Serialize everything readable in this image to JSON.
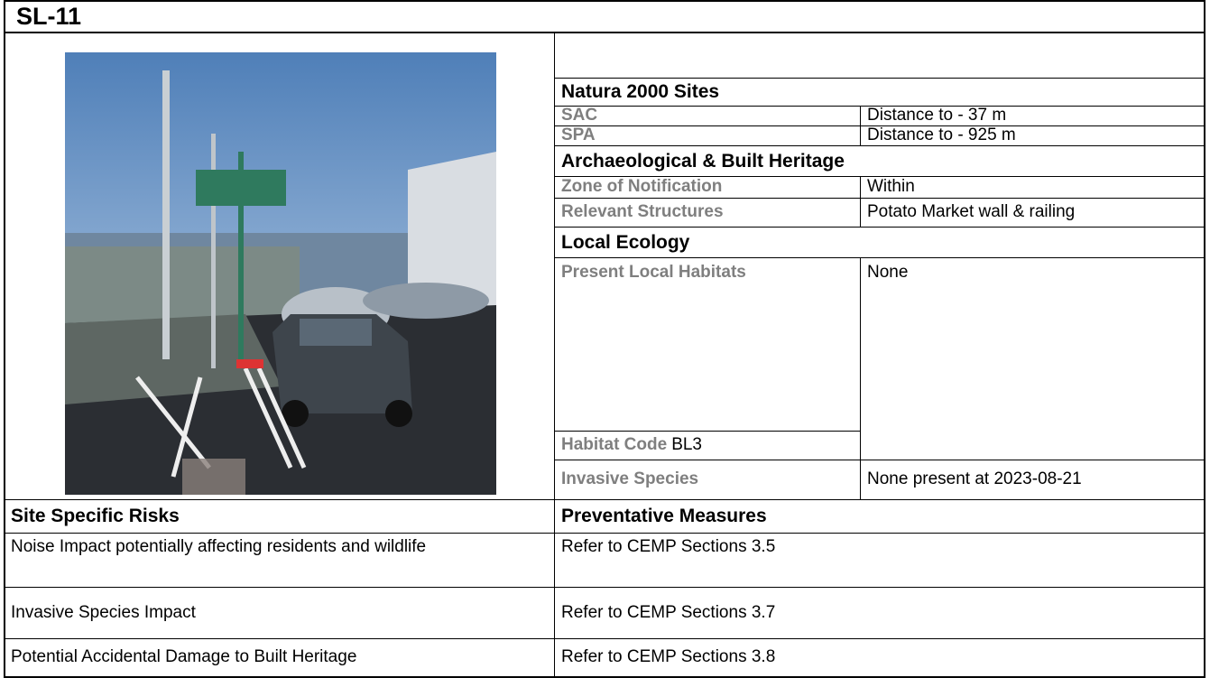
{
  "title": "SL-11",
  "natura": {
    "heading": "Natura 2000 Sites",
    "rows": [
      [
        "SAC",
        "Distance to - 37 m"
      ],
      [
        "SPA",
        "Distance to - 925 m"
      ]
    ]
  },
  "heritage": {
    "heading": "Archaeological & Built Heritage",
    "rows": [
      [
        "Zone of Notification",
        "Within"
      ],
      [
        "Relevant Structures",
        "Potato Market wall & railing"
      ]
    ]
  },
  "ecology": {
    "heading": "Local Ecology",
    "habitats_label": "Present Local Habitats",
    "habitats_value": "None",
    "habitat_code_label": "Habitat Code",
    "habitat_code": "BL3",
    "invasive_label": "Invasive Species",
    "invasive_value": "None present at 2023-08-21"
  },
  "risks": {
    "headers": [
      "Site Specific Risks",
      "Preventative Measures"
    ],
    "rows": [
      [
        "Noise Impact potentially affecting residents and wildlife",
        "Refer to CEMP Sections 3.5"
      ],
      [
        "Invasive Species Impact",
        "Refer to CEMP Sections 3.7"
      ],
      [
        "Potential Accidental Damage to Built Heritage",
        "Refer to CEMP Sections 3.8"
      ]
    ]
  }
}
